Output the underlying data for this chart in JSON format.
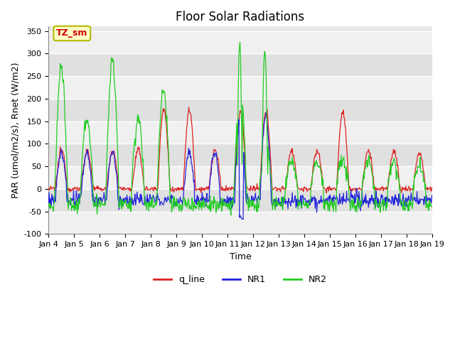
{
  "title": "Floor Solar Radiations",
  "xlabel": "Time",
  "ylabel": "PAR (umol/m2/s), Rnet (W/m2)",
  "ylim": [
    -100,
    360
  ],
  "yticks": [
    -100,
    -50,
    0,
    50,
    100,
    150,
    200,
    250,
    300,
    350
  ],
  "n_days": 15,
  "xtick_labels": [
    "Jan 4",
    "Jan 5",
    "Jan 6",
    "Jan 7",
    "Jan 8",
    "Jan 9",
    "Jan 10",
    "Jan 11",
    "Jan 12",
    "Jan 13",
    "Jan 14",
    "Jan 15",
    "Jan 16",
    "Jan 17",
    "Jan 18",
    "Jan 19"
  ],
  "annotation_text": "TZ_sm",
  "annotation_facecolor": "#ffffc8",
  "annotation_edgecolor": "#b8b800",
  "annotation_textcolor": "#cc0000",
  "fig_facecolor": "#ffffff",
  "plot_bg_color": "#e8e8e8",
  "band_color_light": "#f0f0f0",
  "band_color_dark": "#e0e0e0",
  "line_colors": {
    "q_line": "#dd2222",
    "NR1": "#2222dd",
    "NR2": "#22cc22"
  },
  "legend_labels": [
    "q_line",
    "NR1",
    "NR2"
  ],
  "title_fontsize": 12,
  "axis_fontsize": 9,
  "tick_fontsize": 8
}
